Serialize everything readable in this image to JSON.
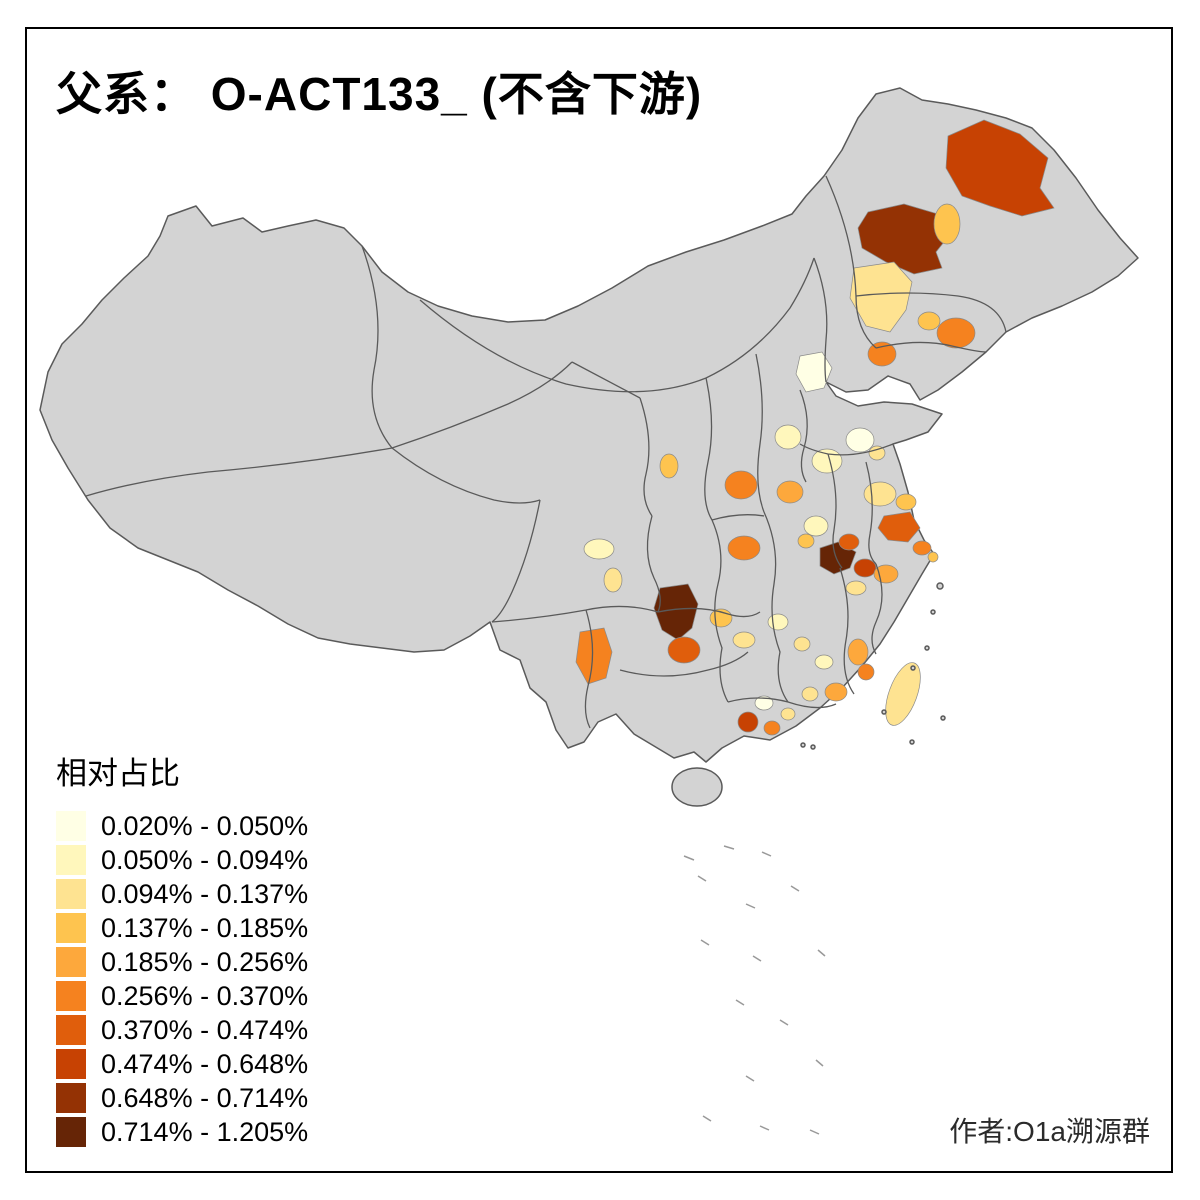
{
  "title": "父系： O-ACT133_ (不含下游)",
  "legend": {
    "title": "相对占比",
    "items": [
      {
        "range": "0.020% - 0.050%",
        "color": "#FFFFE5"
      },
      {
        "range": "0.050% - 0.094%",
        "color": "#FFF7BC"
      },
      {
        "range": "0.094% - 0.137%",
        "color": "#FEE391"
      },
      {
        "range": "0.137% - 0.185%",
        "color": "#FEC44F"
      },
      {
        "range": "0.185% - 0.256%",
        "color": "#FDA83C"
      },
      {
        "range": "0.256% - 0.370%",
        "color": "#F5821F"
      },
      {
        "range": "0.370% - 0.474%",
        "color": "#E05E0C"
      },
      {
        "range": "0.474% - 0.648%",
        "color": "#C74203"
      },
      {
        "range": "0.648% - 0.714%",
        "color": "#943204"
      },
      {
        "range": "0.714% - 1.205%",
        "color": "#662506"
      }
    ]
  },
  "attribution": "作者:O1a溯源群",
  "map": {
    "land_color": "#D3D3D3",
    "border_color": "#5A5A5A",
    "sea_mark_color": "#999999",
    "background_color": "#FFFFFF",
    "frame_color": "#000000"
  }
}
